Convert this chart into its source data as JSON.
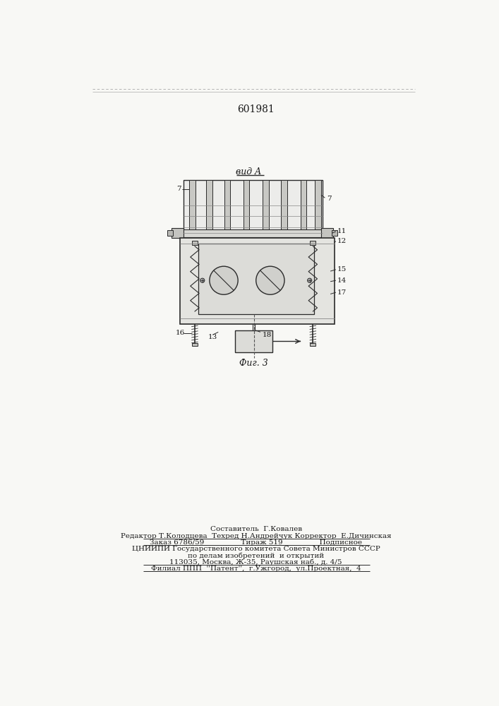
{
  "patent_number": "601981",
  "fig_label": "Фиг. 3",
  "view_label": "вид A",
  "background_color": "#f8f8f5",
  "line_color": "#2a2a2a",
  "footer_lines": [
    "Составитель  Г.Ковалев",
    "Редактор Т.Колодцева  Техред Н.Андрейчук Корректор  Е.Дичинская",
    "Заказ 6786/59                Тираж 519                Подписное",
    "ЦНИИПИ Государственного комитета Совета Министров СССР",
    "по делам изобретений  и открытий",
    "113035, Москва, Ж-35, Раушская наб., д. 4/5",
    "Филиал ППП  ''Патент'',  г.Ужгород,  ул.Проектная,  4"
  ]
}
